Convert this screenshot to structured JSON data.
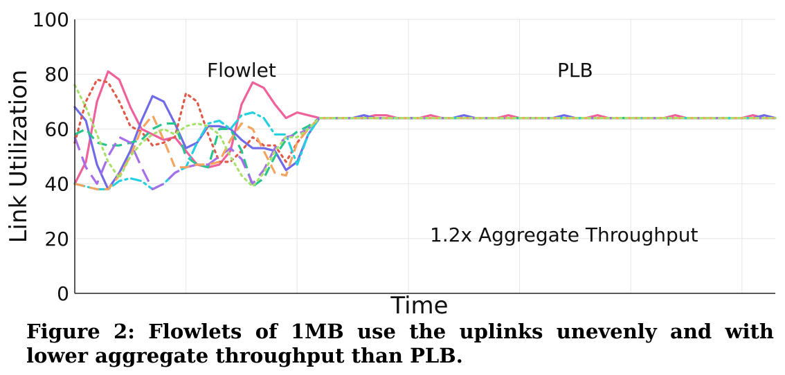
{
  "caption": "Figure 2: Flowlets of 1MB use the uplinks unevenly and with lower aggregate throughput than PLB.",
  "chart_data": {
    "type": "line",
    "xlabel": "Time",
    "ylabel": "Link Utilization",
    "xlim": [
      0,
      63
    ],
    "ylim": [
      0,
      100
    ],
    "yticks": [
      0,
      20,
      40,
      60,
      80,
      100
    ],
    "grid": true,
    "legend": "none",
    "annotations": [
      {
        "text": "Flowlet",
        "x": 15,
        "y": 79
      },
      {
        "text": "PLB",
        "x": 45,
        "y": 79
      },
      {
        "text": "1.2x Aggregate Throughput",
        "x": 44,
        "y": 19
      }
    ],
    "x": [
      0,
      1,
      2,
      3,
      4,
      5,
      6,
      7,
      8,
      9,
      10,
      11,
      12,
      13,
      14,
      15,
      16,
      17,
      18,
      19,
      20,
      21,
      22,
      23,
      24,
      25,
      26,
      27,
      28,
      29,
      30,
      31,
      32,
      33,
      34,
      35,
      36,
      37,
      38,
      39,
      40,
      41,
      42,
      43,
      44,
      45,
      46,
      47,
      48,
      49,
      50,
      51,
      52,
      53,
      54,
      55,
      56,
      57,
      58,
      59,
      60,
      61,
      62,
      63
    ],
    "series": [
      {
        "color": "#f0609a",
        "dash": "solid",
        "values": [
          40,
          48,
          70,
          81,
          78,
          68,
          60,
          58,
          56,
          57,
          52,
          47,
          46,
          47,
          52,
          69,
          77,
          75,
          69,
          64,
          66,
          65,
          64,
          64,
          64,
          64,
          64,
          65,
          65,
          64,
          64,
          64,
          65,
          64,
          64,
          64,
          64,
          64,
          64,
          65,
          64,
          64,
          64,
          64,
          64,
          64,
          64,
          65,
          64,
          64,
          64,
          64,
          64,
          64,
          65,
          64,
          64,
          64,
          64,
          64,
          64,
          65,
          64,
          64
        ]
      },
      {
        "color": "#6f6be8",
        "dash": "solid",
        "values": [
          68,
          63,
          47,
          38,
          44,
          52,
          63,
          72,
          70,
          62,
          53,
          55,
          61,
          61,
          60,
          56,
          53,
          53,
          52,
          45,
          48,
          58,
          64,
          64,
          64,
          64,
          65,
          64,
          64,
          64,
          64,
          64,
          64,
          64,
          64,
          65,
          64,
          64,
          64,
          64,
          64,
          64,
          64,
          64,
          65,
          64,
          64,
          64,
          64,
          64,
          64,
          64,
          64,
          64,
          64,
          64,
          64,
          64,
          64,
          64,
          64,
          64,
          65,
          64
        ]
      },
      {
        "color": "#e05a4a",
        "dash": "dot",
        "values": [
          55,
          70,
          78,
          77,
          70,
          61,
          59,
          54,
          55,
          57,
          73,
          70,
          58,
          48,
          48,
          52,
          57,
          54,
          54,
          48,
          55,
          60,
          64,
          64,
          64,
          64,
          64,
          64,
          64,
          64,
          64,
          64,
          64,
          64,
          64,
          64,
          64,
          64,
          64,
          64,
          64,
          64,
          64,
          64,
          64,
          64,
          64,
          64,
          64,
          64,
          64,
          64,
          64,
          64,
          64,
          64,
          64,
          64,
          64,
          64,
          64,
          64,
          64,
          64
        ]
      },
      {
        "color": "#28c48e",
        "dash": "dash",
        "values": [
          58,
          60,
          55,
          54,
          54,
          55,
          56,
          60,
          62,
          62,
          50,
          47,
          46,
          60,
          60,
          52,
          39,
          42,
          50,
          56,
          59,
          61,
          64,
          64,
          64,
          64,
          64,
          64,
          64,
          64,
          64,
          64,
          64,
          64,
          64,
          64,
          64,
          64,
          64,
          64,
          64,
          64,
          64,
          64,
          64,
          64,
          64,
          64,
          64,
          64,
          64,
          64,
          64,
          64,
          64,
          64,
          64,
          64,
          64,
          64,
          64,
          64,
          64,
          64
        ]
      },
      {
        "color": "#25cfe0",
        "dash": "dashdot",
        "values": [
          40,
          39,
          38,
          38,
          41,
          42,
          41,
          38,
          40,
          44,
          46,
          55,
          62,
          63,
          60,
          65,
          66,
          64,
          58,
          58,
          47,
          58,
          64,
          64,
          64,
          64,
          64,
          64,
          64,
          64,
          64,
          64,
          64,
          64,
          64,
          64,
          64,
          64,
          64,
          64,
          64,
          64,
          64,
          64,
          64,
          64,
          64,
          64,
          64,
          64,
          64,
          64,
          64,
          64,
          64,
          64,
          64,
          64,
          64,
          64,
          64,
          64,
          64,
          64
        ]
      },
      {
        "color": "#a66ee8",
        "dash": "longdash",
        "values": [
          57,
          46,
          40,
          50,
          57,
          55,
          46,
          38,
          40,
          44,
          46,
          47,
          47,
          50,
          53,
          49,
          40,
          45,
          53,
          57,
          58,
          60,
          64,
          64,
          64,
          64,
          64,
          64,
          64,
          64,
          64,
          64,
          64,
          64,
          64,
          64,
          64,
          64,
          64,
          64,
          64,
          64,
          64,
          64,
          64,
          64,
          64,
          64,
          64,
          64,
          64,
          64,
          64,
          64,
          64,
          64,
          64,
          64,
          64,
          64,
          64,
          64,
          64,
          64
        ]
      },
      {
        "color": "#f3a45e",
        "dash": "dash",
        "values": [
          40,
          39,
          38,
          38,
          43,
          50,
          60,
          65,
          56,
          46,
          46,
          47,
          47,
          48,
          56,
          62,
          60,
          52,
          44,
          43,
          55,
          60,
          64,
          64,
          64,
          64,
          64,
          64,
          64,
          64,
          64,
          64,
          64,
          64,
          64,
          64,
          64,
          64,
          64,
          64,
          64,
          64,
          64,
          64,
          64,
          64,
          64,
          64,
          64,
          64,
          64,
          64,
          64,
          64,
          64,
          64,
          64,
          64,
          64,
          64,
          64,
          64,
          64,
          64
        ]
      },
      {
        "color": "#a9e06a",
        "dash": "dot",
        "values": [
          76,
          68,
          58,
          48,
          42,
          50,
          55,
          58,
          60,
          58,
          61,
          62,
          61,
          58,
          50,
          43,
          39,
          44,
          52,
          57,
          57,
          60,
          64,
          64,
          64,
          64,
          64,
          64,
          64,
          64,
          64,
          64,
          64,
          64,
          64,
          64,
          64,
          64,
          64,
          64,
          64,
          64,
          64,
          64,
          64,
          64,
          64,
          64,
          64,
          64,
          64,
          64,
          64,
          64,
          64,
          64,
          64,
          64,
          64,
          64,
          64,
          64,
          64,
          64
        ]
      }
    ]
  }
}
